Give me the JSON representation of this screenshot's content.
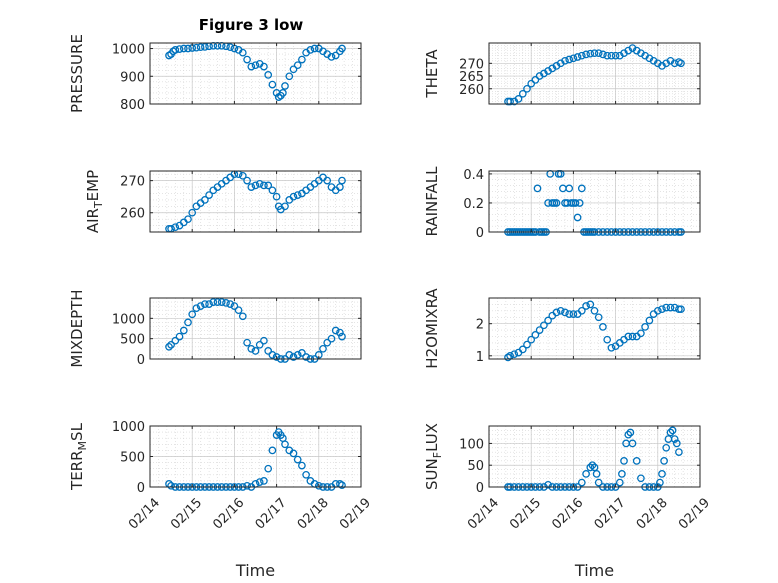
{
  "figure_title": "Figure 3 low",
  "chart_data": [
    {
      "type": "scatter",
      "ylabel": "PRESSURE",
      "xlabel": "",
      "ylim": [
        800,
        1020
      ],
      "yticks": [
        800,
        900,
        1000
      ],
      "xlim": [
        0,
        5
      ],
      "xticks": [
        "02/14",
        "02/15",
        "02/16",
        "02/17",
        "02/18",
        "02/19"
      ],
      "x": [
        0.45,
        0.5,
        0.55,
        0.6,
        0.7,
        0.8,
        0.9,
        1.0,
        1.1,
        1.2,
        1.3,
        1.4,
        1.5,
        1.6,
        1.7,
        1.8,
        1.9,
        2.0,
        2.1,
        2.2,
        2.3,
        2.4,
        2.5,
        2.6,
        2.7,
        2.8,
        2.9,
        3.0,
        3.05,
        3.1,
        3.15,
        3.2,
        3.3,
        3.4,
        3.5,
        3.6,
        3.7,
        3.8,
        3.9,
        4.0,
        4.1,
        4.2,
        4.3,
        4.4,
        4.5,
        4.55
      ],
      "y": [
        975,
        980,
        990,
        995,
        998,
        1000,
        1000,
        1002,
        1003,
        1005,
        1006,
        1008,
        1010,
        1010,
        1010,
        1008,
        1005,
        1000,
        995,
        985,
        960,
        935,
        940,
        945,
        935,
        905,
        870,
        840,
        825,
        830,
        840,
        865,
        900,
        925,
        940,
        960,
        985,
        995,
        1000,
        1000,
        990,
        980,
        970,
        975,
        990,
        1000
      ]
    },
    {
      "type": "scatter",
      "ylabel": "THETA",
      "xlabel": "",
      "ylim": [
        254,
        278
      ],
      "yticks": [
        260,
        265,
        270
      ],
      "xlim": [
        0,
        5
      ],
      "xticks": [
        "02/14",
        "02/15",
        "02/16",
        "02/17",
        "02/18",
        "02/19"
      ],
      "x": [
        0.45,
        0.5,
        0.6,
        0.7,
        0.8,
        0.9,
        1.0,
        1.1,
        1.2,
        1.3,
        1.4,
        1.5,
        1.6,
        1.7,
        1.8,
        1.9,
        2.0,
        2.1,
        2.2,
        2.3,
        2.4,
        2.5,
        2.6,
        2.7,
        2.8,
        2.9,
        3.0,
        3.1,
        3.2,
        3.3,
        3.4,
        3.5,
        3.6,
        3.7,
        3.8,
        3.9,
        4.0,
        4.1,
        4.2,
        4.3,
        4.4,
        4.5,
        4.55
      ],
      "y": [
        255,
        255,
        255,
        256,
        258,
        260,
        262,
        263.5,
        265,
        266,
        267,
        268,
        269,
        270,
        271,
        271.5,
        272,
        272.5,
        273,
        273.5,
        273.8,
        274,
        274,
        273.5,
        273,
        273,
        273,
        273,
        274,
        275,
        276,
        275,
        274,
        273,
        272,
        271,
        270,
        269,
        270,
        271,
        270,
        270.5,
        270
      ]
    },
    {
      "type": "scatter",
      "ylabel": "AIR_TEMP",
      "xlabel": "",
      "ylim": [
        254,
        273
      ],
      "yticks": [
        260,
        270
      ],
      "xlim": [
        0,
        5
      ],
      "xticks": [
        "02/14",
        "02/15",
        "02/16",
        "02/17",
        "02/18",
        "02/19"
      ],
      "x": [
        0.45,
        0.5,
        0.6,
        0.7,
        0.8,
        0.9,
        1.0,
        1.1,
        1.2,
        1.3,
        1.4,
        1.5,
        1.6,
        1.7,
        1.8,
        1.9,
        2.0,
        2.1,
        2.2,
        2.3,
        2.4,
        2.5,
        2.6,
        2.7,
        2.8,
        2.9,
        3.0,
        3.05,
        3.1,
        3.2,
        3.3,
        3.4,
        3.5,
        3.6,
        3.7,
        3.8,
        3.9,
        4.0,
        4.1,
        4.2,
        4.3,
        4.4,
        4.5,
        4.55
      ],
      "y": [
        255,
        255,
        255.5,
        256,
        257,
        258,
        260,
        262,
        263,
        264,
        265.5,
        267,
        268,
        269,
        270,
        271,
        272,
        272,
        271.5,
        270,
        268,
        268.5,
        269,
        268.5,
        268.5,
        267,
        265,
        262,
        261,
        262,
        264,
        265,
        265.5,
        266,
        267,
        268,
        269,
        270,
        271,
        270,
        268,
        267,
        268,
        270
      ]
    },
    {
      "type": "scatter",
      "ylabel": "RAINFALL",
      "xlabel": "",
      "ylim": [
        0,
        0.42
      ],
      "yticks": [
        0,
        0.2,
        0.4
      ],
      "xlim": [
        0,
        5
      ],
      "xticks": [
        "02/14",
        "02/15",
        "02/16",
        "02/17",
        "02/18",
        "02/19"
      ],
      "x": [
        0.45,
        0.5,
        0.55,
        0.6,
        0.65,
        0.7,
        0.75,
        0.8,
        0.85,
        0.9,
        0.95,
        1.0,
        1.05,
        1.1,
        1.15,
        1.2,
        1.25,
        1.3,
        1.35,
        1.4,
        1.45,
        1.5,
        1.55,
        1.6,
        1.65,
        1.7,
        1.75,
        1.8,
        1.85,
        1.9,
        1.95,
        2.0,
        2.05,
        2.1,
        2.15,
        2.2,
        2.25,
        2.3,
        2.35,
        2.4,
        2.45,
        2.5,
        2.6,
        2.7,
        2.8,
        2.9,
        3.0,
        3.1,
        3.2,
        3.3,
        3.4,
        3.5,
        3.6,
        3.7,
        3.8,
        3.9,
        4.0,
        4.1,
        4.2,
        4.3,
        4.4,
        4.5,
        4.55
      ],
      "y": [
        0,
        0,
        0,
        0,
        0,
        0,
        0,
        0,
        0,
        0,
        0,
        0,
        0,
        0,
        0.3,
        0,
        0,
        0,
        0,
        0.2,
        0.4,
        0.2,
        0.2,
        0.2,
        0.4,
        0.4,
        0.3,
        0.2,
        0.2,
        0.3,
        0.2,
        0.2,
        0.2,
        0.1,
        0.2,
        0.3,
        0,
        0,
        0,
        0,
        0,
        0,
        0,
        0,
        0,
        0,
        0,
        0,
        0,
        0,
        0,
        0,
        0,
        0,
        0,
        0,
        0,
        0,
        0,
        0,
        0,
        0,
        0
      ]
    },
    {
      "type": "scatter",
      "ylabel": "MIXDEPTH",
      "xlabel": "",
      "ylim": [
        0,
        1500
      ],
      "yticks": [
        0,
        500,
        1000
      ],
      "xlim": [
        0,
        5
      ],
      "xticks": [
        "02/14",
        "02/15",
        "02/16",
        "02/17",
        "02/18",
        "02/19"
      ],
      "x": [
        0.45,
        0.5,
        0.6,
        0.7,
        0.8,
        0.9,
        1.0,
        1.1,
        1.2,
        1.3,
        1.4,
        1.5,
        1.6,
        1.7,
        1.8,
        1.9,
        2.0,
        2.1,
        2.2,
        2.3,
        2.4,
        2.5,
        2.6,
        2.7,
        2.8,
        2.9,
        3.0,
        3.1,
        3.2,
        3.3,
        3.4,
        3.5,
        3.6,
        3.7,
        3.8,
        3.9,
        4.0,
        4.1,
        4.2,
        4.3,
        4.4,
        4.5,
        4.55
      ],
      "y": [
        300,
        350,
        450,
        550,
        700,
        900,
        1100,
        1250,
        1300,
        1350,
        1350,
        1400,
        1400,
        1400,
        1380,
        1350,
        1300,
        1200,
        1050,
        400,
        250,
        200,
        350,
        450,
        200,
        100,
        50,
        0,
        0,
        100,
        50,
        100,
        150,
        50,
        0,
        0,
        100,
        250,
        400,
        500,
        700,
        650,
        550
      ]
    },
    {
      "type": "scatter",
      "ylabel": "H2OMIXRA",
      "xlabel": "",
      "ylim": [
        0.9,
        2.8
      ],
      "yticks": [
        1,
        2
      ],
      "xlim": [
        0,
        5
      ],
      "xticks": [
        "02/14",
        "02/15",
        "02/16",
        "02/17",
        "02/18",
        "02/19"
      ],
      "x": [
        0.45,
        0.5,
        0.6,
        0.7,
        0.8,
        0.9,
        1.0,
        1.1,
        1.2,
        1.3,
        1.4,
        1.5,
        1.6,
        1.7,
        1.8,
        1.9,
        2.0,
        2.1,
        2.2,
        2.3,
        2.4,
        2.5,
        2.6,
        2.7,
        2.8,
        2.9,
        3.0,
        3.1,
        3.2,
        3.3,
        3.4,
        3.5,
        3.6,
        3.7,
        3.8,
        3.9,
        4.0,
        4.1,
        4.2,
        4.3,
        4.4,
        4.5,
        4.55
      ],
      "y": [
        0.95,
        1.0,
        1.05,
        1.1,
        1.2,
        1.35,
        1.5,
        1.65,
        1.8,
        1.95,
        2.1,
        2.25,
        2.35,
        2.4,
        2.35,
        2.3,
        2.3,
        2.3,
        2.4,
        2.55,
        2.6,
        2.4,
        2.2,
        1.9,
        1.5,
        1.25,
        1.3,
        1.4,
        1.5,
        1.6,
        1.6,
        1.6,
        1.7,
        1.9,
        2.1,
        2.3,
        2.4,
        2.45,
        2.5,
        2.5,
        2.5,
        2.45,
        2.45
      ]
    },
    {
      "type": "scatter",
      "ylabel": "TERR_MSL",
      "xlabel": "Time",
      "ylim": [
        0,
        1000
      ],
      "yticks": [
        0,
        500,
        1000
      ],
      "xlim": [
        0,
        5
      ],
      "xticks": [
        "02/14",
        "02/15",
        "02/16",
        "02/17",
        "02/18",
        "02/19"
      ],
      "x": [
        0.45,
        0.5,
        0.6,
        0.7,
        0.8,
        0.9,
        1.0,
        1.1,
        1.2,
        1.3,
        1.4,
        1.5,
        1.6,
        1.7,
        1.8,
        1.9,
        2.0,
        2.1,
        2.2,
        2.3,
        2.4,
        2.5,
        2.6,
        2.7,
        2.8,
        2.9,
        3.0,
        3.05,
        3.1,
        3.15,
        3.2,
        3.3,
        3.4,
        3.5,
        3.6,
        3.7,
        3.8,
        3.9,
        4.0,
        4.1,
        4.2,
        4.3,
        4.4,
        4.5,
        4.55
      ],
      "y": [
        50,
        20,
        0,
        0,
        0,
        0,
        0,
        0,
        0,
        0,
        0,
        0,
        0,
        0,
        0,
        0,
        0,
        0,
        0,
        20,
        0,
        50,
        80,
        100,
        300,
        600,
        850,
        900,
        850,
        800,
        700,
        600,
        550,
        450,
        350,
        200,
        100,
        50,
        20,
        0,
        0,
        0,
        50,
        50,
        30
      ]
    },
    {
      "type": "scatter",
      "ylabel": "SUN_FLUX",
      "xlabel": "Time",
      "ylim": [
        0,
        140
      ],
      "yticks": [
        0,
        50,
        100
      ],
      "xlim": [
        0,
        5
      ],
      "xticks": [
        "02/14",
        "02/15",
        "02/16",
        "02/17",
        "02/18",
        "02/19"
      ],
      "x": [
        0.45,
        0.5,
        0.6,
        0.7,
        0.8,
        0.9,
        1.0,
        1.1,
        1.2,
        1.3,
        1.4,
        1.5,
        1.6,
        1.7,
        1.8,
        1.9,
        2.0,
        2.1,
        2.2,
        2.3,
        2.4,
        2.45,
        2.5,
        2.55,
        2.6,
        2.7,
        2.8,
        2.9,
        3.0,
        3.1,
        3.15,
        3.2,
        3.25,
        3.3,
        3.35,
        3.4,
        3.5,
        3.6,
        3.7,
        3.8,
        3.9,
        4.0,
        4.05,
        4.1,
        4.15,
        4.2,
        4.25,
        4.3,
        4.35,
        4.4,
        4.45,
        4.5
      ],
      "y": [
        0,
        0,
        0,
        0,
        0,
        0,
        0,
        0,
        0,
        0,
        5,
        0,
        0,
        0,
        0,
        0,
        0,
        0,
        10,
        30,
        45,
        50,
        45,
        30,
        10,
        0,
        0,
        0,
        0,
        10,
        30,
        60,
        100,
        120,
        125,
        100,
        60,
        20,
        0,
        0,
        0,
        0,
        10,
        30,
        60,
        90,
        110,
        125,
        130,
        110,
        100,
        80
      ]
    }
  ]
}
